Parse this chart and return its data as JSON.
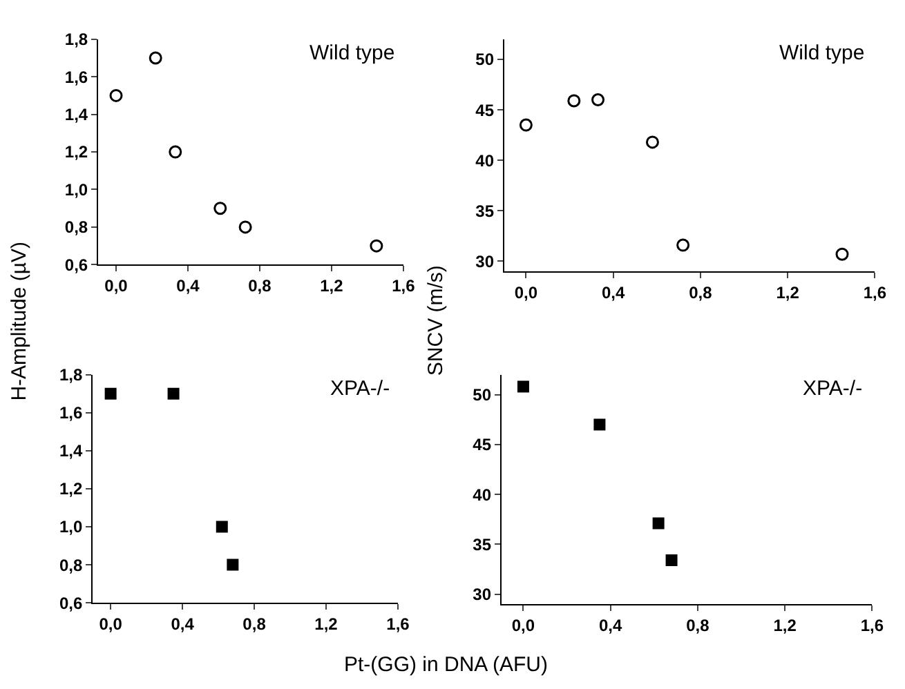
{
  "chart_data": [
    {
      "type": "scatter",
      "ylabel": "H-Amplitude (µV)",
      "marker": "circle",
      "annotations": [
        "Wild type"
      ],
      "xlim": [
        -0.1,
        1.6
      ],
      "xticks": [
        {
          "value": 0,
          "label": "0,0"
        },
        {
          "value": 0.4,
          "label": "0,4"
        },
        {
          "value": 0.8,
          "label": "0,8"
        },
        {
          "value": 1.2,
          "label": "1,2"
        },
        {
          "value": 1.6,
          "label": "1,6"
        }
      ],
      "ylim": [
        0.6,
        1.8
      ],
      "yticks": [
        {
          "value": 0.6,
          "label": "0,6"
        },
        {
          "value": 0.8,
          "label": "0,8"
        },
        {
          "value": 1.0,
          "label": "1,0"
        },
        {
          "value": 1.2,
          "label": "1,2"
        },
        {
          "value": 1.4,
          "label": "1,4"
        },
        {
          "value": 1.6,
          "label": "1,6"
        },
        {
          "value": 1.8,
          "label": "1,8"
        }
      ],
      "series": [
        {
          "color": "#000000",
          "x": [
            0,
            0.22,
            0.33,
            0.58,
            0.72,
            1.45
          ],
          "values": [
            1.5,
            1.7,
            1.2,
            0.9,
            0.8,
            0.7
          ]
        }
      ]
    },
    {
      "type": "scatter",
      "ylabel": "SNCV (m/s)",
      "marker": "circle",
      "annotations": [
        "Wild type"
      ],
      "xlim": [
        -0.1,
        1.6
      ],
      "xticks": [
        {
          "value": 0,
          "label": "0,0"
        },
        {
          "value": 0.4,
          "label": "0,4"
        },
        {
          "value": 0.8,
          "label": "0,8"
        },
        {
          "value": 1.2,
          "label": "1,2"
        },
        {
          "value": 1.6,
          "label": "1,6"
        }
      ],
      "ylim": [
        29,
        52
      ],
      "yticks": [
        30,
        35,
        40,
        45,
        50
      ],
      "series": [
        {
          "color": "#000000",
          "x": [
            0,
            0.22,
            0.33,
            0.58,
            0.72,
            1.45
          ],
          "values": [
            43.5,
            45.9,
            46.0,
            41.8,
            31.6,
            30.7
          ]
        }
      ]
    },
    {
      "type": "scatter",
      "xlabel": "Pt-(GG) in DNA (AFU)",
      "marker": "square",
      "annotations": [
        "XPA-/-"
      ],
      "xlim": [
        -0.1,
        1.6
      ],
      "xticks": [
        {
          "value": 0,
          "label": "0,0"
        },
        {
          "value": 0.4,
          "label": "0,4"
        },
        {
          "value": 0.8,
          "label": "0,8"
        },
        {
          "value": 1.2,
          "label": "1,2"
        },
        {
          "value": 1.6,
          "label": "1,6"
        }
      ],
      "ylim": [
        0.6,
        1.8
      ],
      "yticks": [
        {
          "value": 0.6,
          "label": "0,6"
        },
        {
          "value": 0.8,
          "label": "0,8"
        },
        {
          "value": 1.0,
          "label": "1,0"
        },
        {
          "value": 1.2,
          "label": "1,2"
        },
        {
          "value": 1.4,
          "label": "1,4"
        },
        {
          "value": 1.6,
          "label": "1,6"
        },
        {
          "value": 1.8,
          "label": "1,8"
        }
      ],
      "series": [
        {
          "color": "#000000",
          "x": [
            0,
            0.35,
            0.62,
            0.68
          ],
          "values": [
            1.7,
            1.7,
            1.0,
            0.8
          ]
        }
      ]
    },
    {
      "type": "scatter",
      "marker": "square",
      "annotations": [
        "XPA-/-"
      ],
      "xlim": [
        -0.1,
        1.6
      ],
      "xticks": [
        {
          "value": 0,
          "label": "0,0"
        },
        {
          "value": 0.4,
          "label": "0,4"
        },
        {
          "value": 0.8,
          "label": "0,8"
        },
        {
          "value": 1.2,
          "label": "1,2"
        },
        {
          "value": 1.6,
          "label": "1,6"
        }
      ],
      "ylim": [
        29,
        52
      ],
      "yticks": [
        30,
        35,
        40,
        45,
        50
      ],
      "series": [
        {
          "color": "#000000",
          "x": [
            0,
            0.35,
            0.62,
            0.68
          ],
          "values": [
            50.8,
            47.0,
            37.1,
            33.4
          ]
        }
      ]
    }
  ]
}
